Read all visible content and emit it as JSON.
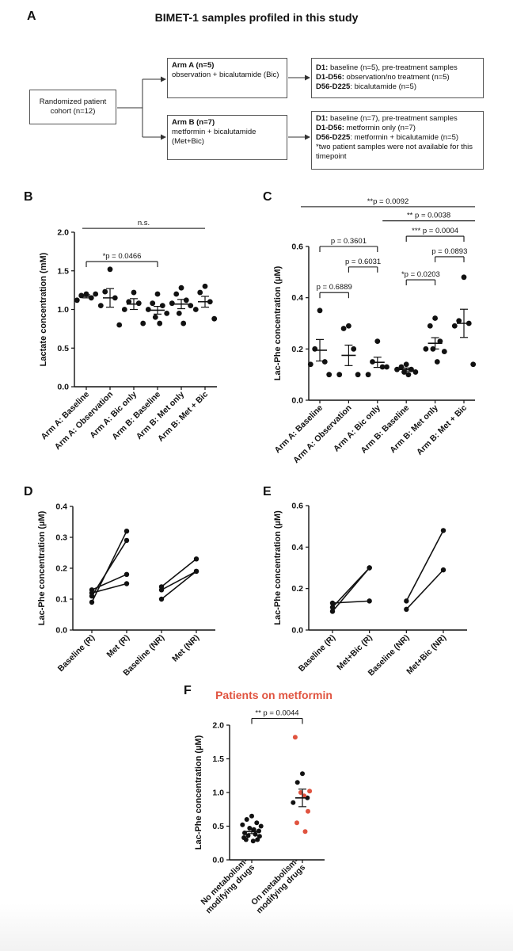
{
  "panel_letters": {
    "a": "A",
    "b": "B",
    "c": "C",
    "d": "D",
    "e": "E",
    "f": "F"
  },
  "panelA": {
    "title": "BIMET-1 samples profiled in this study",
    "cohort": "Randomized patient cohort (n=12)",
    "armA": {
      "title": "Arm A (n=5)",
      "desc": "observation + bicalutamide (Bic)"
    },
    "armB": {
      "title": "Arm B (n=7)",
      "desc": "metformin + bicalutamide (Met+Bic)"
    },
    "armA_detail": [
      {
        "bold": "D1:",
        "text": " baseline (n=5), pre-treatment samples"
      },
      {
        "bold": "D1-D56:",
        "text": " observation/no treatment (n=5)"
      },
      {
        "bold": "D56-D225",
        "text": ": bicalutamide (n=5)"
      }
    ],
    "armB_detail": [
      {
        "bold": "D1:",
        "text": " baseline (n=7), pre-treatment samples"
      },
      {
        "bold": "D1-D56:",
        "text": " metformin only (n=7)"
      },
      {
        "bold": "D56-D225",
        "text": ": metformin + bicalutamide (n=5)"
      },
      {
        "bold": "",
        "text": "*two patient samples were not available for this timepoint"
      }
    ]
  },
  "chart_data": [
    {
      "panel": "B",
      "type": "scatter",
      "ylabel": "Lactate concentration (mM)",
      "ylim": [
        0,
        2.0
      ],
      "yticks": [
        "0.0",
        "0.5",
        "1.0",
        "1.5",
        "2.0"
      ],
      "categories": [
        "Arm A: Baseline",
        "Arm A: Observation",
        "Arm A: Bic only",
        "Arm B: Baseline",
        "Arm B: Met only",
        "Arm B: Met + Bic"
      ],
      "points": [
        [
          1.2,
          1.18,
          1.15,
          1.12,
          1.2
        ],
        [
          1.52,
          1.23,
          1.15,
          1.05,
          0.8
        ],
        [
          1.22,
          1.1,
          1.08,
          1.0,
          0.82
        ],
        [
          1.2,
          1.08,
          1.05,
          1.0,
          0.95,
          0.9,
          0.82
        ],
        [
          1.28,
          1.2,
          1.12,
          1.08,
          1.05,
          0.95,
          0.82
        ],
        [
          1.3,
          1.22,
          1.1,
          1.0,
          0.88
        ]
      ],
      "means": [
        1.17,
        1.15,
        1.07,
        0.99,
        1.07,
        1.1
      ],
      "sems": [
        0.02,
        0.12,
        0.07,
        0.05,
        0.06,
        0.07
      ],
      "brackets": [
        {
          "from": 0,
          "to": 5,
          "y": 2.05,
          "label": "n.s.",
          "ticks": false
        },
        {
          "from": 0,
          "to": 3,
          "y": 1.62,
          "label": "*p = 0.0466",
          "ticks": true
        }
      ]
    },
    {
      "panel": "C",
      "type": "scatter",
      "ylabel": "Lac-Phe concentration (µM)",
      "ylim": [
        0,
        0.6
      ],
      "yticks": [
        "0.0",
        "0.2",
        "0.4",
        "0.6"
      ],
      "categories": [
        "Arm A: Baseline",
        "Arm A: Observation",
        "Arm A: Bic only",
        "Arm B: Baseline",
        "Arm B: Met only",
        "Arm B: Met + Bic"
      ],
      "points": [
        [
          0.35,
          0.2,
          0.15,
          0.14,
          0.1
        ],
        [
          0.29,
          0.28,
          0.2,
          0.1,
          0.1
        ],
        [
          0.23,
          0.15,
          0.13,
          0.1,
          0.13
        ],
        [
          0.14,
          0.13,
          0.12,
          0.12,
          0.11,
          0.11,
          0.1
        ],
        [
          0.32,
          0.29,
          0.23,
          0.2,
          0.19,
          0.2,
          0.15
        ],
        [
          0.48,
          0.31,
          0.3,
          0.29,
          0.14
        ]
      ],
      "means": [
        0.195,
        0.175,
        0.148,
        0.12,
        0.222,
        0.3
      ],
      "sems": [
        0.042,
        0.04,
        0.02,
        0.006,
        0.022,
        0.055
      ],
      "brackets": [
        {
          "from": 0,
          "to": 6,
          "y": 0.755,
          "label": "**p = 0.0092",
          "ticks": false
        },
        {
          "from": 3,
          "to": 6,
          "y": 0.7,
          "label": "** p = 0.0038",
          "ticks": false
        },
        {
          "from": 3,
          "to": 5,
          "y": 0.64,
          "label": "*** p = 0.0004",
          "ticks": true
        },
        {
          "from": 0,
          "to": 2,
          "y": 0.6,
          "label": "p = 0.3601",
          "ticks": true
        },
        {
          "from": 4,
          "to": 5,
          "y": 0.56,
          "label": "p = 0.0893",
          "ticks": true
        },
        {
          "from": 1,
          "to": 2,
          "y": 0.52,
          "label": "p = 0.6031",
          "ticks": true
        },
        {
          "from": 3,
          "to": 4,
          "y": 0.47,
          "label": "*p = 0.0203",
          "ticks": true
        },
        {
          "from": 0,
          "to": 1,
          "y": 0.42,
          "label": "p = 0.6889",
          "ticks": true
        }
      ]
    },
    {
      "panel": "D",
      "type": "line",
      "ylabel": "Lac-Phe concentration (µM)",
      "ylim": [
        0,
        0.4
      ],
      "yticks": [
        "0.0",
        "0.1",
        "0.2",
        "0.3",
        "0.4"
      ],
      "categories": [
        "Baseline (R)",
        "Met (R)",
        "Baseline (NR)",
        "Met (NR)"
      ],
      "pairs": [
        [
          0,
          1,
          0.09,
          0.32
        ],
        [
          0,
          1,
          0.11,
          0.29
        ],
        [
          0,
          1,
          0.13,
          0.18
        ],
        [
          0,
          1,
          0.12,
          0.15
        ],
        [
          2,
          3,
          0.14,
          0.23
        ],
        [
          2,
          3,
          0.13,
          0.19
        ],
        [
          2,
          3,
          0.1,
          0.19
        ]
      ]
    },
    {
      "panel": "E",
      "type": "line",
      "ylabel": "Lac-Phe concentration (µM)",
      "ylim": [
        0,
        0.6
      ],
      "yticks": [
        "0.0",
        "0.2",
        "0.4",
        "0.6"
      ],
      "categories": [
        "Baseline (R)",
        "Met+Bic (R)",
        "Baseline (NR)",
        "Met+Bic (NR)"
      ],
      "pairs": [
        [
          0,
          1,
          0.09,
          0.3
        ],
        [
          0,
          1,
          0.11,
          0.3
        ],
        [
          0,
          1,
          0.13,
          0.14
        ],
        [
          2,
          3,
          0.14,
          0.48
        ],
        [
          2,
          3,
          0.1,
          0.29
        ]
      ]
    },
    {
      "panel": "F",
      "type": "scatter",
      "title": "Patients on metformin",
      "ylabel": "Lac-Phe concentration (µM)",
      "ylim": [
        0,
        2.0
      ],
      "yticks": [
        "0.0",
        "0.5",
        "1.0",
        "1.5",
        "2.0"
      ],
      "categories": [
        "No metabolism-\nmodifying drugs",
        "On metabolism-\nmodifying drugs"
      ],
      "groups": [
        {
          "black": [
            0.65,
            0.6,
            0.55,
            0.52,
            0.5,
            0.47,
            0.45,
            0.43,
            0.4,
            0.38,
            0.36,
            0.35,
            0.33,
            0.3,
            0.3,
            0.28
          ],
          "red": []
        },
        {
          "black": [
            1.28,
            1.15,
            0.92,
            0.85
          ],
          "red": [
            1.82,
            1.02,
            1.0,
            0.95,
            0.72,
            0.55,
            0.42
          ]
        }
      ],
      "means": [
        0.42,
        0.92
      ],
      "sems": [
        0.03,
        0.13
      ],
      "brackets": [
        {
          "from": 0,
          "to": 1,
          "y": 2.1,
          "label": "** p = 0.0044",
          "ticks": true
        }
      ]
    }
  ],
  "colors": {
    "black": "#111111",
    "red": "#e0533f",
    "title_red": "#e0533f",
    "box_border": "#555555"
  }
}
